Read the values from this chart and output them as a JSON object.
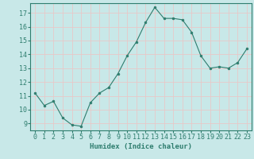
{
  "x": [
    0,
    1,
    2,
    3,
    4,
    5,
    6,
    7,
    8,
    9,
    10,
    11,
    12,
    13,
    14,
    15,
    16,
    17,
    18,
    19,
    20,
    21,
    22,
    23
  ],
  "y": [
    11.2,
    10.3,
    10.6,
    9.4,
    8.9,
    8.8,
    10.5,
    11.2,
    11.6,
    12.6,
    13.9,
    14.9,
    16.3,
    17.4,
    16.6,
    16.6,
    16.5,
    15.6,
    13.9,
    13.0,
    13.1,
    13.0,
    13.4,
    14.4
  ],
  "line_color": "#2e7d6e",
  "marker": "o",
  "marker_size": 2,
  "bg_color": "#c8e8e8",
  "grid_color": "#e8c8c8",
  "xlabel": "Humidex (Indice chaleur)",
  "ylim": [
    8.5,
    17.7
  ],
  "xlim": [
    -0.5,
    23.5
  ],
  "yticks": [
    9,
    10,
    11,
    12,
    13,
    14,
    15,
    16,
    17
  ],
  "xticks": [
    0,
    1,
    2,
    3,
    4,
    5,
    6,
    7,
    8,
    9,
    10,
    11,
    12,
    13,
    14,
    15,
    16,
    17,
    18,
    19,
    20,
    21,
    22,
    23
  ],
  "tick_color": "#2e7d6e",
  "label_color": "#2e7d6e",
  "font_size": 6.0,
  "xlabel_fontsize": 6.5
}
